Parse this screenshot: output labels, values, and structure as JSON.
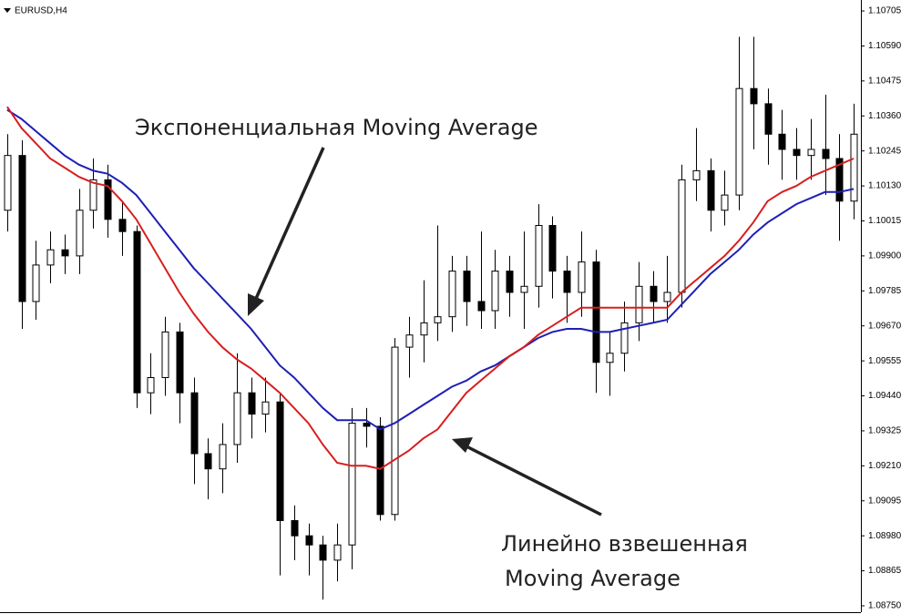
{
  "chart_data": {
    "type": "candlestick",
    "title": "EURUSD,H4",
    "annotations": [
      {
        "text": "Экспоненциальная Moving Average"
      },
      {
        "lines": [
          "Линейно взвешенная",
          "Moving Average"
        ]
      }
    ],
    "up_color": "#ffffff",
    "down_color": "#000000",
    "open": [
      1.1005,
      1.1023,
      1.0975,
      1.0987,
      1.0992,
      1.099,
      1.1005,
      1.1015,
      1.1002,
      1.0998,
      1.0945,
      1.095,
      1.0965,
      1.0945,
      1.0925,
      1.092,
      1.0928,
      1.0945,
      1.0938,
      1.0942,
      1.0903,
      1.0898,
      1.0895,
      1.089,
      1.0895,
      1.0935,
      1.0934,
      1.0905,
      1.096,
      1.0964,
      1.0968,
      1.097,
      1.0985,
      1.0975,
      1.0972,
      1.0985,
      1.0978,
      1.098,
      1.1,
      1.0985,
      1.0978,
      1.0988,
      1.0955,
      1.0958,
      1.0968,
      1.098,
      1.0975,
      1.0978,
      1.1015,
      1.1018,
      1.1005,
      1.101,
      1.1045,
      1.104,
      1.103,
      1.1025,
      1.1023,
      1.1025,
      1.1022,
      1.1008
    ],
    "high": [
      1.103,
      1.1028,
      1.0995,
      1.0998,
      1.0997,
      1.1012,
      1.1022,
      1.102,
      1.1008,
      1.1,
      1.0958,
      1.097,
      1.0968,
      1.095,
      1.093,
      1.0935,
      1.0958,
      1.095,
      1.095,
      1.0945,
      1.0908,
      1.0902,
      1.0898,
      1.0902,
      1.094,
      1.094,
      1.0937,
      1.0963,
      1.097,
      1.0982,
      1.1,
      1.099,
      1.099,
      1.0998,
      1.0992,
      1.099,
      1.0998,
      1.1007,
      1.1003,
      1.099,
      1.0998,
      1.0992,
      1.0965,
      1.0975,
      1.0988,
      1.0985,
      1.099,
      1.102,
      1.1032,
      1.1022,
      1.1018,
      1.1062,
      1.1062,
      1.1045,
      1.1038,
      1.1032,
      1.1035,
      1.1043,
      1.103,
      1.104
    ],
    "low": [
      1.0998,
      1.0966,
      1.0969,
      1.0981,
      1.0984,
      1.0984,
      1.0999,
      1.0996,
      1.099,
      1.094,
      1.0938,
      1.0944,
      1.0935,
      1.0915,
      1.091,
      1.0912,
      1.0922,
      1.093,
      1.0932,
      1.0885,
      1.089,
      1.0885,
      1.0877,
      1.0883,
      1.0887,
      1.0927,
      1.0903,
      1.0903,
      1.095,
      1.0955,
      1.0962,
      1.0965,
      1.0967,
      1.0966,
      1.0966,
      1.097,
      1.0966,
      1.0973,
      1.0976,
      1.0968,
      1.097,
      1.0945,
      1.0944,
      1.0952,
      1.0962,
      1.0968,
      1.0968,
      1.0973,
      1.1008,
      1.0998,
      1.1,
      1.1005,
      1.1025,
      1.102,
      1.1015,
      1.1015,
      1.1015,
      1.101,
      1.0995,
      1.1002
    ],
    "close": [
      1.1023,
      1.0975,
      1.0987,
      1.0992,
      1.099,
      1.1005,
      1.1015,
      1.1002,
      1.0998,
      1.0945,
      1.095,
      1.0965,
      1.0945,
      1.0925,
      1.092,
      1.0928,
      1.0945,
      1.0938,
      1.0942,
      1.0903,
      1.0898,
      1.0895,
      1.089,
      1.0895,
      1.0935,
      1.0934,
      1.0905,
      1.096,
      1.0964,
      1.0968,
      1.097,
      1.0985,
      1.0975,
      1.0972,
      1.0985,
      1.0978,
      1.098,
      1.1,
      1.0985,
      1.0978,
      1.0988,
      1.0955,
      1.0958,
      1.0968,
      1.098,
      1.0975,
      1.0978,
      1.1015,
      1.1018,
      1.1005,
      1.101,
      1.1045,
      1.104,
      1.103,
      1.1025,
      1.1023,
      1.1025,
      1.1022,
      1.1008,
      1.103
    ],
    "series": [
      {
        "color": "#1f1fb4",
        "values": [
          1.1038,
          1.1035,
          1.1031,
          1.1027,
          1.1023,
          1.102,
          1.1018,
          1.1017,
          1.1014,
          1.101,
          1.1004,
          1.0998,
          1.0992,
          1.0986,
          1.0981,
          1.0976,
          1.0971,
          1.0966,
          1.096,
          1.0954,
          1.095,
          1.0945,
          1.094,
          1.0936,
          1.0936,
          1.0936,
          1.0933,
          1.0935,
          1.0938,
          1.0941,
          1.0944,
          1.0947,
          1.0949,
          1.0952,
          1.0954,
          1.0957,
          1.096,
          1.0963,
          1.0965,
          1.0966,
          1.0966,
          1.0965,
          1.0965,
          1.0966,
          1.0967,
          1.0968,
          1.0969,
          1.0974,
          1.0979,
          1.0984,
          1.0988,
          1.0992,
          1.0997,
          1.1001,
          1.1004,
          1.1007,
          1.1009,
          1.1011,
          1.1011,
          1.1012
        ]
      },
      {
        "color": "#d81e1e",
        "values": [
          1.1039,
          1.1032,
          1.1027,
          1.1022,
          1.1019,
          1.1016,
          1.1014,
          1.1013,
          1.1008,
          1.1002,
          1.0994,
          1.0986,
          1.0978,
          1.0971,
          1.0965,
          1.096,
          1.0956,
          1.0953,
          1.0949,
          1.0945,
          1.094,
          1.0935,
          1.0928,
          1.0922,
          1.0921,
          1.0921,
          1.092,
          1.0923,
          1.0926,
          1.093,
          1.0933,
          1.0939,
          1.0945,
          1.0949,
          1.0953,
          1.0957,
          1.096,
          1.0964,
          1.0967,
          1.097,
          1.0973,
          1.0973,
          1.0973,
          1.0973,
          1.0973,
          1.0973,
          1.0973,
          1.0978,
          1.0982,
          1.0986,
          1.099,
          1.0995,
          1.1001,
          1.1008,
          1.1011,
          1.1013,
          1.1016,
          1.1018,
          1.102,
          1.1022
        ]
      }
    ],
    "ylim": [
      1.08729,
      1.10741
    ],
    "yticks": [
      1.10705,
      {
        "value": 1.1059,
        "label": "1.10590"
      },
      1.10475,
      {
        "value": 1.1036,
        "label": "1.10360"
      },
      1.10245,
      {
        "value": 1.1013,
        "label": "1.10130"
      },
      1.10015,
      {
        "value": 1.099,
        "label": "1.09900"
      },
      1.09785,
      {
        "value": 1.0967,
        "label": "1.09670"
      },
      1.09555,
      {
        "value": 1.0944,
        "label": "1.09440"
      },
      1.09325,
      {
        "value": 1.0921,
        "label": "1.09210"
      },
      1.09095,
      {
        "value": 1.0898,
        "label": "1.08980"
      },
      1.08865,
      {
        "value": 1.0875,
        "label": "1.08750"
      }
    ]
  }
}
